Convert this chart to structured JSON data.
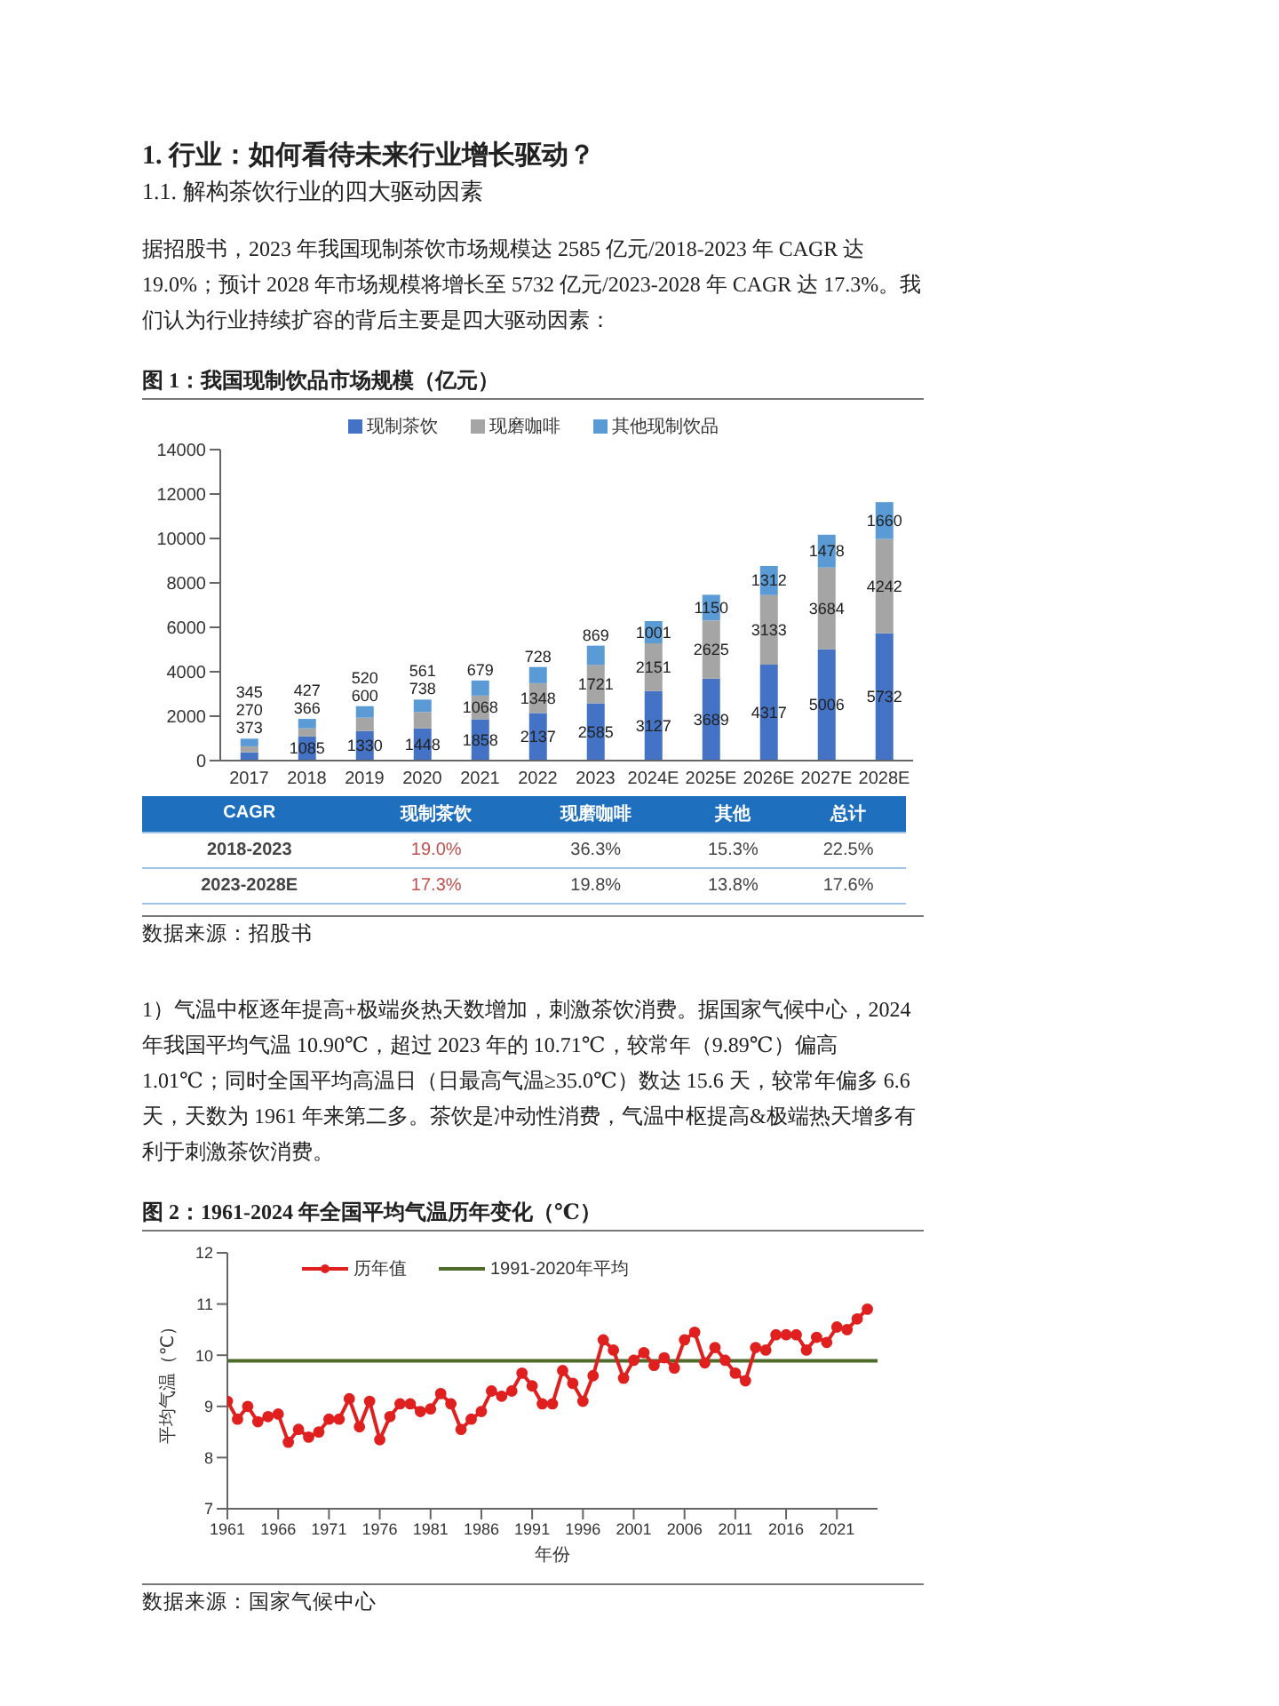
{
  "chart_data": [
    {
      "type": "bar",
      "title": "图 1：我国现制饮品市场规模（亿元）",
      "stacked": true,
      "data_labels": true,
      "legend": "top",
      "grid": false,
      "categories": [
        "2017",
        "2018",
        "2019",
        "2020",
        "2021",
        "2022",
        "2023",
        "2024E",
        "2025E",
        "2026E",
        "2027E",
        "2028E"
      ],
      "series": [
        {
          "name": "现制茶饮",
          "color": "#4472c4",
          "values": [
            373,
            1085,
            1330,
            1448,
            1858,
            2137,
            2585,
            3127,
            3689,
            4317,
            5006,
            5732
          ]
        },
        {
          "name": "现磨咖啡",
          "color": "#a5a5a5",
          "values": [
            270,
            366,
            600,
            738,
            1068,
            1348,
            1721,
            2151,
            2625,
            3133,
            3684,
            4242
          ]
        },
        {
          "name": "其他现制饮品",
          "color": "#5b9bd5",
          "values": [
            345,
            427,
            520,
            561,
            679,
            728,
            869,
            1001,
            1150,
            1312,
            1478,
            1660
          ]
        }
      ],
      "ylim": [
        0,
        14000
      ],
      "yticks": [
        0,
        2000,
        4000,
        6000,
        8000,
        10000,
        12000,
        14000
      ],
      "annotations": [
        "1.  行业：如何看待未来行业增长驱动？",
        "1.1.  解构茶饮行业的四大驱动因素",
        "据招股书，2023 年我国现制茶饮市场规模达 2585 亿元/2018-2023 年 CAGR 达 19.0%；预计 2028 年市场规模将增长至 5732 亿元/2023-2028 年 CAGR 达 17.3%。我们认为行业持续扩容的背后主要是四大驱动因素：",
        "CAGR 现制茶饮 现磨咖啡 其他 总计",
        "2018-2023 19.0% 36.3% 15.3% 22.5%",
        "2023-2028E 17.3% 19.8% 13.8% 17.6%",
        "数据来源：招股书"
      ]
    },
    {
      "type": "line",
      "title": "图 2：1961-2024 年全国平均气温历年变化（℃）",
      "xlabel": "年份",
      "ylabel": "平均气温（℃）",
      "legend": "top",
      "marker": "circle",
      "grid": false,
      "x": [
        1961,
        1962,
        1963,
        1964,
        1965,
        1966,
        1967,
        1968,
        1969,
        1970,
        1971,
        1972,
        1973,
        1974,
        1975,
        1976,
        1977,
        1978,
        1979,
        1980,
        1981,
        1982,
        1983,
        1984,
        1985,
        1986,
        1987,
        1988,
        1989,
        1990,
        1991,
        1992,
        1993,
        1994,
        1995,
        1996,
        1997,
        1998,
        1999,
        2000,
        2001,
        2002,
        2003,
        2004,
        2005,
        2006,
        2007,
        2008,
        2009,
        2010,
        2011,
        2012,
        2013,
        2014,
        2015,
        2016,
        2017,
        2018,
        2019,
        2020,
        2021,
        2022,
        2023,
        2024
      ],
      "series": [
        {
          "name": "历年值",
          "color": "#e0201f",
          "values": [
            9.1,
            8.75,
            9.0,
            8.7,
            8.8,
            8.85,
            8.3,
            8.55,
            8.4,
            8.5,
            8.75,
            8.75,
            9.15,
            8.6,
            9.1,
            8.35,
            8.8,
            9.05,
            9.05,
            8.9,
            8.95,
            9.25,
            9.05,
            8.55,
            8.75,
            8.9,
            9.3,
            9.2,
            9.3,
            9.65,
            9.4,
            9.05,
            9.05,
            9.7,
            9.45,
            9.1,
            9.6,
            10.3,
            10.1,
            9.55,
            9.9,
            10.05,
            9.8,
            9.95,
            9.75,
            10.3,
            10.45,
            9.85,
            10.15,
            9.9,
            9.65,
            9.5,
            10.15,
            10.1,
            10.4,
            10.4,
            10.4,
            10.1,
            10.35,
            10.25,
            10.55,
            10.5,
            10.71,
            10.9
          ]
        }
      ],
      "ref_lines": [
        {
          "axis": "y",
          "value": 9.89,
          "label": "1991-2020年平均",
          "color": "#4e6b2a"
        }
      ],
      "xlim": [
        1961,
        2025
      ],
      "xticks": [
        1961,
        1966,
        1971,
        1976,
        1981,
        1986,
        1991,
        1996,
        2001,
        2006,
        2011,
        2016,
        2021
      ],
      "ylim": [
        7,
        12
      ],
      "yticks": [
        7,
        8,
        9,
        10,
        11,
        12
      ],
      "annotations": [
        "1）气温中枢逐年提高+极端炎热天数增加，刺激茶饮消费。据国家气候中心，2024 年我国平均气温 10.90℃，超过 2023 年的 10.71℃，较常年（9.89℃）偏高 1.01℃；同时全国平均高温日（日最高气温≥35.0℃）数达 15.6 天，较常年偏多 6.6 天，天数为 1961 年来第二多。茶饮是冲动性消费，气温中枢提高&极端热天增多有利于刺激茶饮消费。",
        "数据来源：国家气候中心"
      ]
    }
  ]
}
